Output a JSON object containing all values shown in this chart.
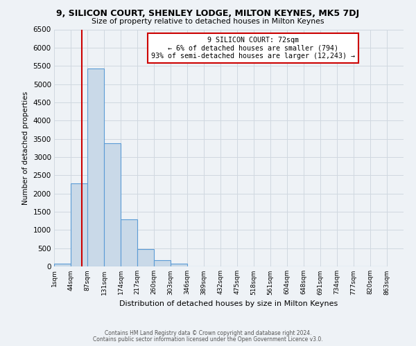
{
  "title": "9, SILICON COURT, SHENLEY LODGE, MILTON KEYNES, MK5 7DJ",
  "subtitle": "Size of property relative to detached houses in Milton Keynes",
  "xlabel": "Distribution of detached houses by size in Milton Keynes",
  "ylabel": "Number of detached properties",
  "bin_labels": [
    "1sqm",
    "44sqm",
    "87sqm",
    "131sqm",
    "174sqm",
    "217sqm",
    "260sqm",
    "303sqm",
    "346sqm",
    "389sqm",
    "432sqm",
    "475sqm",
    "518sqm",
    "561sqm",
    "604sqm",
    "648sqm",
    "691sqm",
    "734sqm",
    "777sqm",
    "820sqm",
    "863sqm"
  ],
  "bar_values": [
    70,
    2270,
    5430,
    3380,
    1300,
    480,
    175,
    70,
    0,
    0,
    0,
    0,
    0,
    0,
    0,
    0,
    0,
    0,
    0,
    0
  ],
  "bar_color": "#c9d9e8",
  "bar_edge_color": "#5b9bd5",
  "property_line_x": 72,
  "annotation_title": "9 SILICON COURT: 72sqm",
  "annotation_line1": "← 6% of detached houses are smaller (794)",
  "annotation_line2": "93% of semi-detached houses are larger (12,243) →",
  "annotation_box_color": "#ffffff",
  "annotation_box_edge": "#cc0000",
  "red_line_color": "#cc0000",
  "ylim": [
    0,
    6500
  ],
  "yticks": [
    0,
    500,
    1000,
    1500,
    2000,
    2500,
    3000,
    3500,
    4000,
    4500,
    5000,
    5500,
    6000,
    6500
  ],
  "grid_color": "#d0d8e0",
  "bg_color": "#eef2f6",
  "footnote1": "Contains HM Land Registry data © Crown copyright and database right 2024.",
  "footnote2": "Contains public sector information licensed under the Open Government Licence v3.0."
}
